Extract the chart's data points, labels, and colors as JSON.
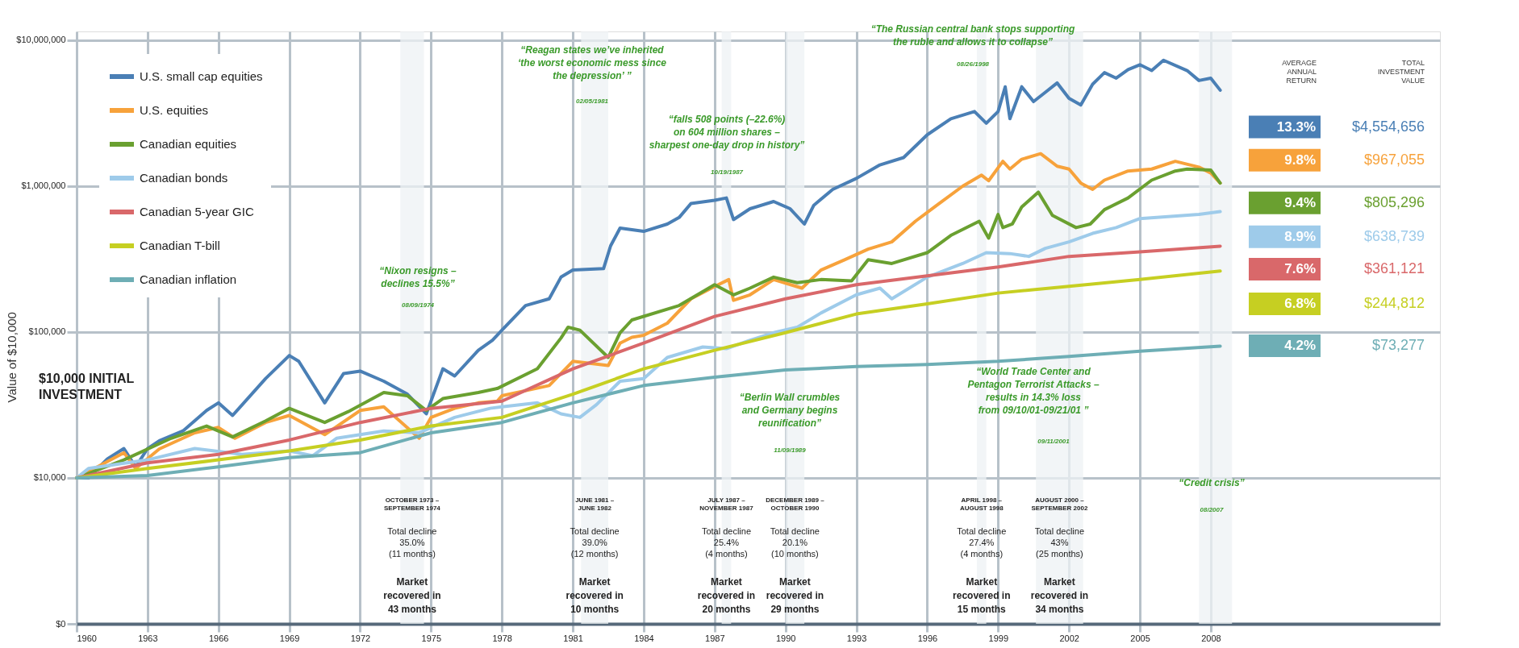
{
  "chart_data": {
    "type": "line",
    "ylabel": "Value of $10,000",
    "log": "y",
    "grid": true,
    "legend": "top left",
    "xlim": [
      1960,
      2017.7
    ],
    "xticks": [
      1960,
      1963,
      1966,
      1969,
      1972,
      1975,
      1978,
      1981,
      1984,
      1987,
      1990,
      1993,
      1996,
      1999,
      2002,
      2005,
      2008
    ],
    "ylim": [
      0,
      11500000
    ],
    "yticks": [
      {
        "value": 0,
        "label": "$0"
      },
      {
        "value": 10000,
        "label": "$10,000"
      },
      {
        "value": 100000,
        "label": "$100,000"
      },
      {
        "value": 1000000,
        "label": "$1,000,000"
      },
      {
        "value": 10000000,
        "label": "$10,000,000"
      }
    ],
    "series": [
      {
        "name": "U.S. small cap equities",
        "color": "#4a7fb5",
        "x": [
          1960,
          1960.5,
          1961.3,
          1962,
          1962.5,
          1963,
          1963.5,
          1964.5,
          1965.5,
          1966,
          1966.6,
          1968,
          1969,
          1969.4,
          1970.5,
          1971.3,
          1972,
          1973,
          1974,
          1974.8,
          1975.5,
          1976,
          1977,
          1977.6,
          1978,
          1979,
          1980,
          1980.5,
          1981,
          1982.3,
          1982.6,
          1983,
          1984,
          1985,
          1985.5,
          1986,
          1987,
          1987.5,
          1987.8,
          1988.5,
          1989.5,
          1990.2,
          1990.8,
          1991.2,
          1992,
          1993,
          1994,
          1995,
          1996,
          1997,
          1998,
          1998.5,
          1999,
          1999.3,
          1999.5,
          2000,
          2000.5,
          2001,
          2001.5,
          2002,
          2002.5,
          2003,
          2003.5,
          2004,
          2004.5,
          2005,
          2005.5,
          2006,
          2007,
          2007.5,
          2008,
          2008.4
        ],
        "values": [
          10000,
          10000,
          13500,
          15900,
          11900,
          15900,
          18000,
          21000,
          29000,
          32700,
          26800,
          48000,
          69000,
          63000,
          32700,
          52000,
          54000,
          46000,
          37500,
          27500,
          56000,
          50000,
          75000,
          88000,
          103000,
          152000,
          169000,
          238000,
          266000,
          272000,
          390000,
          516000,
          490000,
          550000,
          610000,
          760000,
          800000,
          830000,
          590000,
          700000,
          785000,
          700000,
          550000,
          740000,
          950000,
          1130000,
          1400000,
          1570000,
          2250000,
          2900000,
          3250000,
          2700000,
          3250000,
          4800000,
          2900000,
          4800000,
          3800000,
          4400000,
          5100000,
          4000000,
          3600000,
          5000000,
          6000000,
          5500000,
          6300000,
          6800000,
          6200000,
          7300000,
          6200000,
          5300000,
          5500000,
          4550000
        ]
      },
      {
        "name": "U.S. equities",
        "color": "#f7a23b",
        "x": [
          1960,
          1962,
          1962.5,
          1963.5,
          1965,
          1966,
          1966.7,
          1968,
          1969,
          1970.5,
          1972,
          1973,
          1974.5,
          1975,
          1976,
          1977,
          1977.8,
          1978,
          1980,
          1981,
          1982.5,
          1983,
          1983.5,
          1984,
          1985,
          1986,
          1987,
          1987.6,
          1987.8,
          1988.5,
          1989.5,
          1990.7,
          1991.5,
          1992.5,
          1993.5,
          1994.5,
          1995.5,
          1996.5,
          1997.5,
          1998.3,
          1998.6,
          1999.2,
          1999.5,
          2000,
          2000.8,
          2001.5,
          2002,
          2002.5,
          2003,
          2003.5,
          2004.5,
          2005.5,
          2006.5,
          2007.5,
          2008,
          2008.4
        ],
        "values": [
          10000,
          14900,
          11600,
          15800,
          20400,
          22200,
          18700,
          24000,
          26800,
          19800,
          29000,
          30700,
          18700,
          26000,
          30000,
          32700,
          33600,
          36600,
          43000,
          63000,
          59000,
          84000,
          92000,
          95000,
          115000,
          169000,
          205000,
          229000,
          165000,
          180000,
          229000,
          200000,
          266000,
          313000,
          370000,
          415000,
          575000,
          760000,
          1000000,
          1190000,
          1090000,
          1480000,
          1310000,
          1530000,
          1670000,
          1370000,
          1310000,
          1050000,
          950000,
          1100000,
          1270000,
          1310000,
          1480000,
          1350000,
          1230000,
          1050000
        ]
      },
      {
        "name": "Canadian equities",
        "color": "#6aa030",
        "x": [
          1960,
          1962,
          1964,
          1965.5,
          1966.6,
          1968,
          1969,
          1970.5,
          1971.5,
          1973,
          1974,
          1974.8,
          1975.5,
          1977,
          1977.8,
          1979.5,
          1980.5,
          1980.8,
          1981.3,
          1982.5,
          1983,
          1983.5,
          1985.5,
          1987,
          1987.8,
          1988.5,
          1989.5,
          1990.5,
          1991.5,
          1992.8,
          1993.5,
          1994.5,
          1996,
          1997,
          1998.2,
          1998.6,
          1999,
          1999.2,
          1999.6,
          2000,
          2000.7,
          2001.3,
          2002.3,
          2002.9,
          2003.5,
          2004.5,
          2005.5,
          2006.5,
          2007,
          2008,
          2008.4
        ],
        "values": [
          10000,
          13300,
          18700,
          22700,
          19100,
          24600,
          30000,
          24000,
          28500,
          38500,
          36600,
          29000,
          35000,
          38500,
          41000,
          56000,
          91000,
          108000,
          103000,
          67000,
          99000,
          121000,
          152000,
          211000,
          180000,
          200000,
          238000,
          218000,
          229000,
          224000,
          313000,
          295000,
          350000,
          460000,
          575000,
          440000,
          640000,
          520000,
          550000,
          720000,
          910000,
          630000,
          520000,
          550000,
          690000,
          830000,
          1100000,
          1270000,
          1310000,
          1290000,
          1050000
        ]
      },
      {
        "name": "Canadian bonds",
        "color": "#9ecbea",
        "x": [
          1960,
          1960.5,
          1963,
          1965,
          1967,
          1969,
          1970,
          1971,
          1973,
          1974.5,
          1976,
          1977.5,
          1978,
          1979.5,
          1980.5,
          1981.3,
          1982,
          1983,
          1984,
          1985,
          1986.5,
          1987.5,
          1988.5,
          1989.5,
          1990.5,
          1991.5,
          1993,
          1994,
          1994.5,
          1996,
          1997.5,
          1998.5,
          1999.5,
          2000.3,
          2001,
          2002,
          2003,
          2004,
          2005,
          2007.5,
          2008.4
        ],
        "values": [
          10000,
          11600,
          13300,
          15900,
          14500,
          15300,
          14200,
          18700,
          21000,
          20400,
          26000,
          30000,
          30700,
          32700,
          27500,
          26000,
          31800,
          46000,
          48000,
          67000,
          79000,
          77000,
          88000,
          99000,
          108000,
          135000,
          180000,
          200000,
          169000,
          238000,
          295000,
          350000,
          345000,
          330000,
          375000,
          415000,
          475000,
          520000,
          600000,
          640000,
          670000
        ]
      },
      {
        "name": "Canadian 5-year GIC",
        "color": "#d9686a",
        "x": [
          1960,
          1963,
          1966,
          1969,
          1972,
          1975,
          1978,
          1981,
          1984,
          1987,
          1990,
          1993,
          1996,
          1999,
          2002,
          2005,
          2008.4
        ],
        "values": [
          10000,
          12700,
          14500,
          18200,
          24000,
          30000,
          33600,
          56000,
          84000,
          128000,
          169000,
          211000,
          243000,
          279000,
          330000,
          355000,
          388000
        ]
      },
      {
        "name": "Canadian T-bill",
        "color": "#c6cf22",
        "x": [
          1960,
          1963,
          1966,
          1969,
          1972,
          1975,
          1978,
          1981,
          1984,
          1987,
          1990,
          1993,
          1996,
          1999,
          2002,
          2005,
          2008.4
        ],
        "values": [
          10000,
          11600,
          13300,
          15300,
          18200,
          22700,
          26000,
          37500,
          56000,
          75000,
          99000,
          133000,
          156000,
          185000,
          206000,
          229000,
          262000
        ]
      },
      {
        "name": "Canadian inflation",
        "color": "#6eaeb5",
        "x": [
          1960,
          1963,
          1966,
          1969,
          1972,
          1975,
          1978,
          1981,
          1984,
          1987,
          1990,
          1993,
          1996,
          1999,
          2002,
          2005,
          2008.4
        ],
        "values": [
          10000,
          10400,
          11900,
          13800,
          14900,
          20400,
          24000,
          32700,
          43000,
          49000,
          55000,
          58000,
          60000,
          63000,
          68000,
          74000,
          80000
        ]
      }
    ],
    "bands": [
      {
        "axis": "x",
        "from": 1973.7,
        "to": 1974.7,
        "color": "#eef1f4",
        "label": "OCTOBER 1973 –\nSEPTEMBER 1974\nTotal decline\n35.0%\n(11 months)\nMarket\nrecovered in\n43 months"
      },
      {
        "axis": "x",
        "from": 1981.35,
        "to": 1982.5,
        "color": "#eef1f4",
        "label": "JUNE 1981 –\nJUNE 1982\nTotal decline\n39.0%\n(12 months)\nMarket\nrecovered in\n10 months"
      },
      {
        "axis": "x",
        "from": 1987.3,
        "to": 1987.7,
        "color": "#eef1f4",
        "label": "JULY 1987 –\nNOVEMBER 1987\nTotal decline\n25.4%\n(4 months)\nMarket\nrecovered in\n20 months"
      },
      {
        "axis": "x",
        "from": 1990.0,
        "to": 1990.8,
        "color": "#eef1f4",
        "label": "DECEMBER 1989 –\nOCTOBER 1990\nTotal decline\n20.1%\n(10 months)\nMarket\nrecovered in\n29 months"
      },
      {
        "axis": "x",
        "from": 1998.1,
        "to": 1998.5,
        "color": "#eef1f4",
        "label": "APRIL 1998 –\nAUGUST 1998\nTotal decline\n27.4%\n(4 months)\nMarket\nrecovered in\n15 months"
      },
      {
        "axis": "x",
        "from": 2000.6,
        "to": 2002.6,
        "color": "#eef1f4",
        "label": "AUGUST 2000 –\nSEPTEMBER 2002\nTotal decline\n43%\n(25 months)\nMarket\nrecovered in\n34 months"
      },
      {
        "axis": "x",
        "from": 2007.5,
        "to": 2008.9,
        "color": "#eef1f4"
      }
    ],
    "annotations": [
      "“Nixon resigns –\ndeclines 15.5%”",
      "08/09/1974",
      "“Reagan states we’ve inherited\n‘the worst economic mess since\nthe depression’ ”",
      "02/05/1981",
      "“falls 508 points (–22.6%)\non 604 million shares –\nsharpest one-day drop in history”",
      "10/19/1987",
      "“The Russian central bank stops supporting\nthe ruble and allows it to collapse”",
      "08/26/1998",
      "“Berlin Wall crumbles\nand Germany begins\nreunification”",
      "11/09/1989",
      "“World Trade Center and\nPentagon Terrorist Attacks –\nresults in 14.3% loss\nfrom 09/10/01-09/21/01 ”",
      "09/11/2001",
      "“Credit crisis”",
      "08/2007",
      "$10,000 INITIAL\nINVESTMENT",
      "AVERAGE\nANNUAL\nRETURN",
      "TOTAL\nINVESTMENT\nVALUE",
      "13.3%",
      "9.8%",
      "9.4%",
      "8.9%",
      "7.6%",
      "6.8%",
      "4.2%",
      "$4,554,656",
      "$967,055",
      "$805,296",
      "$638,739",
      "$361,121",
      "$244,812",
      "$73,277"
    ]
  }
}
